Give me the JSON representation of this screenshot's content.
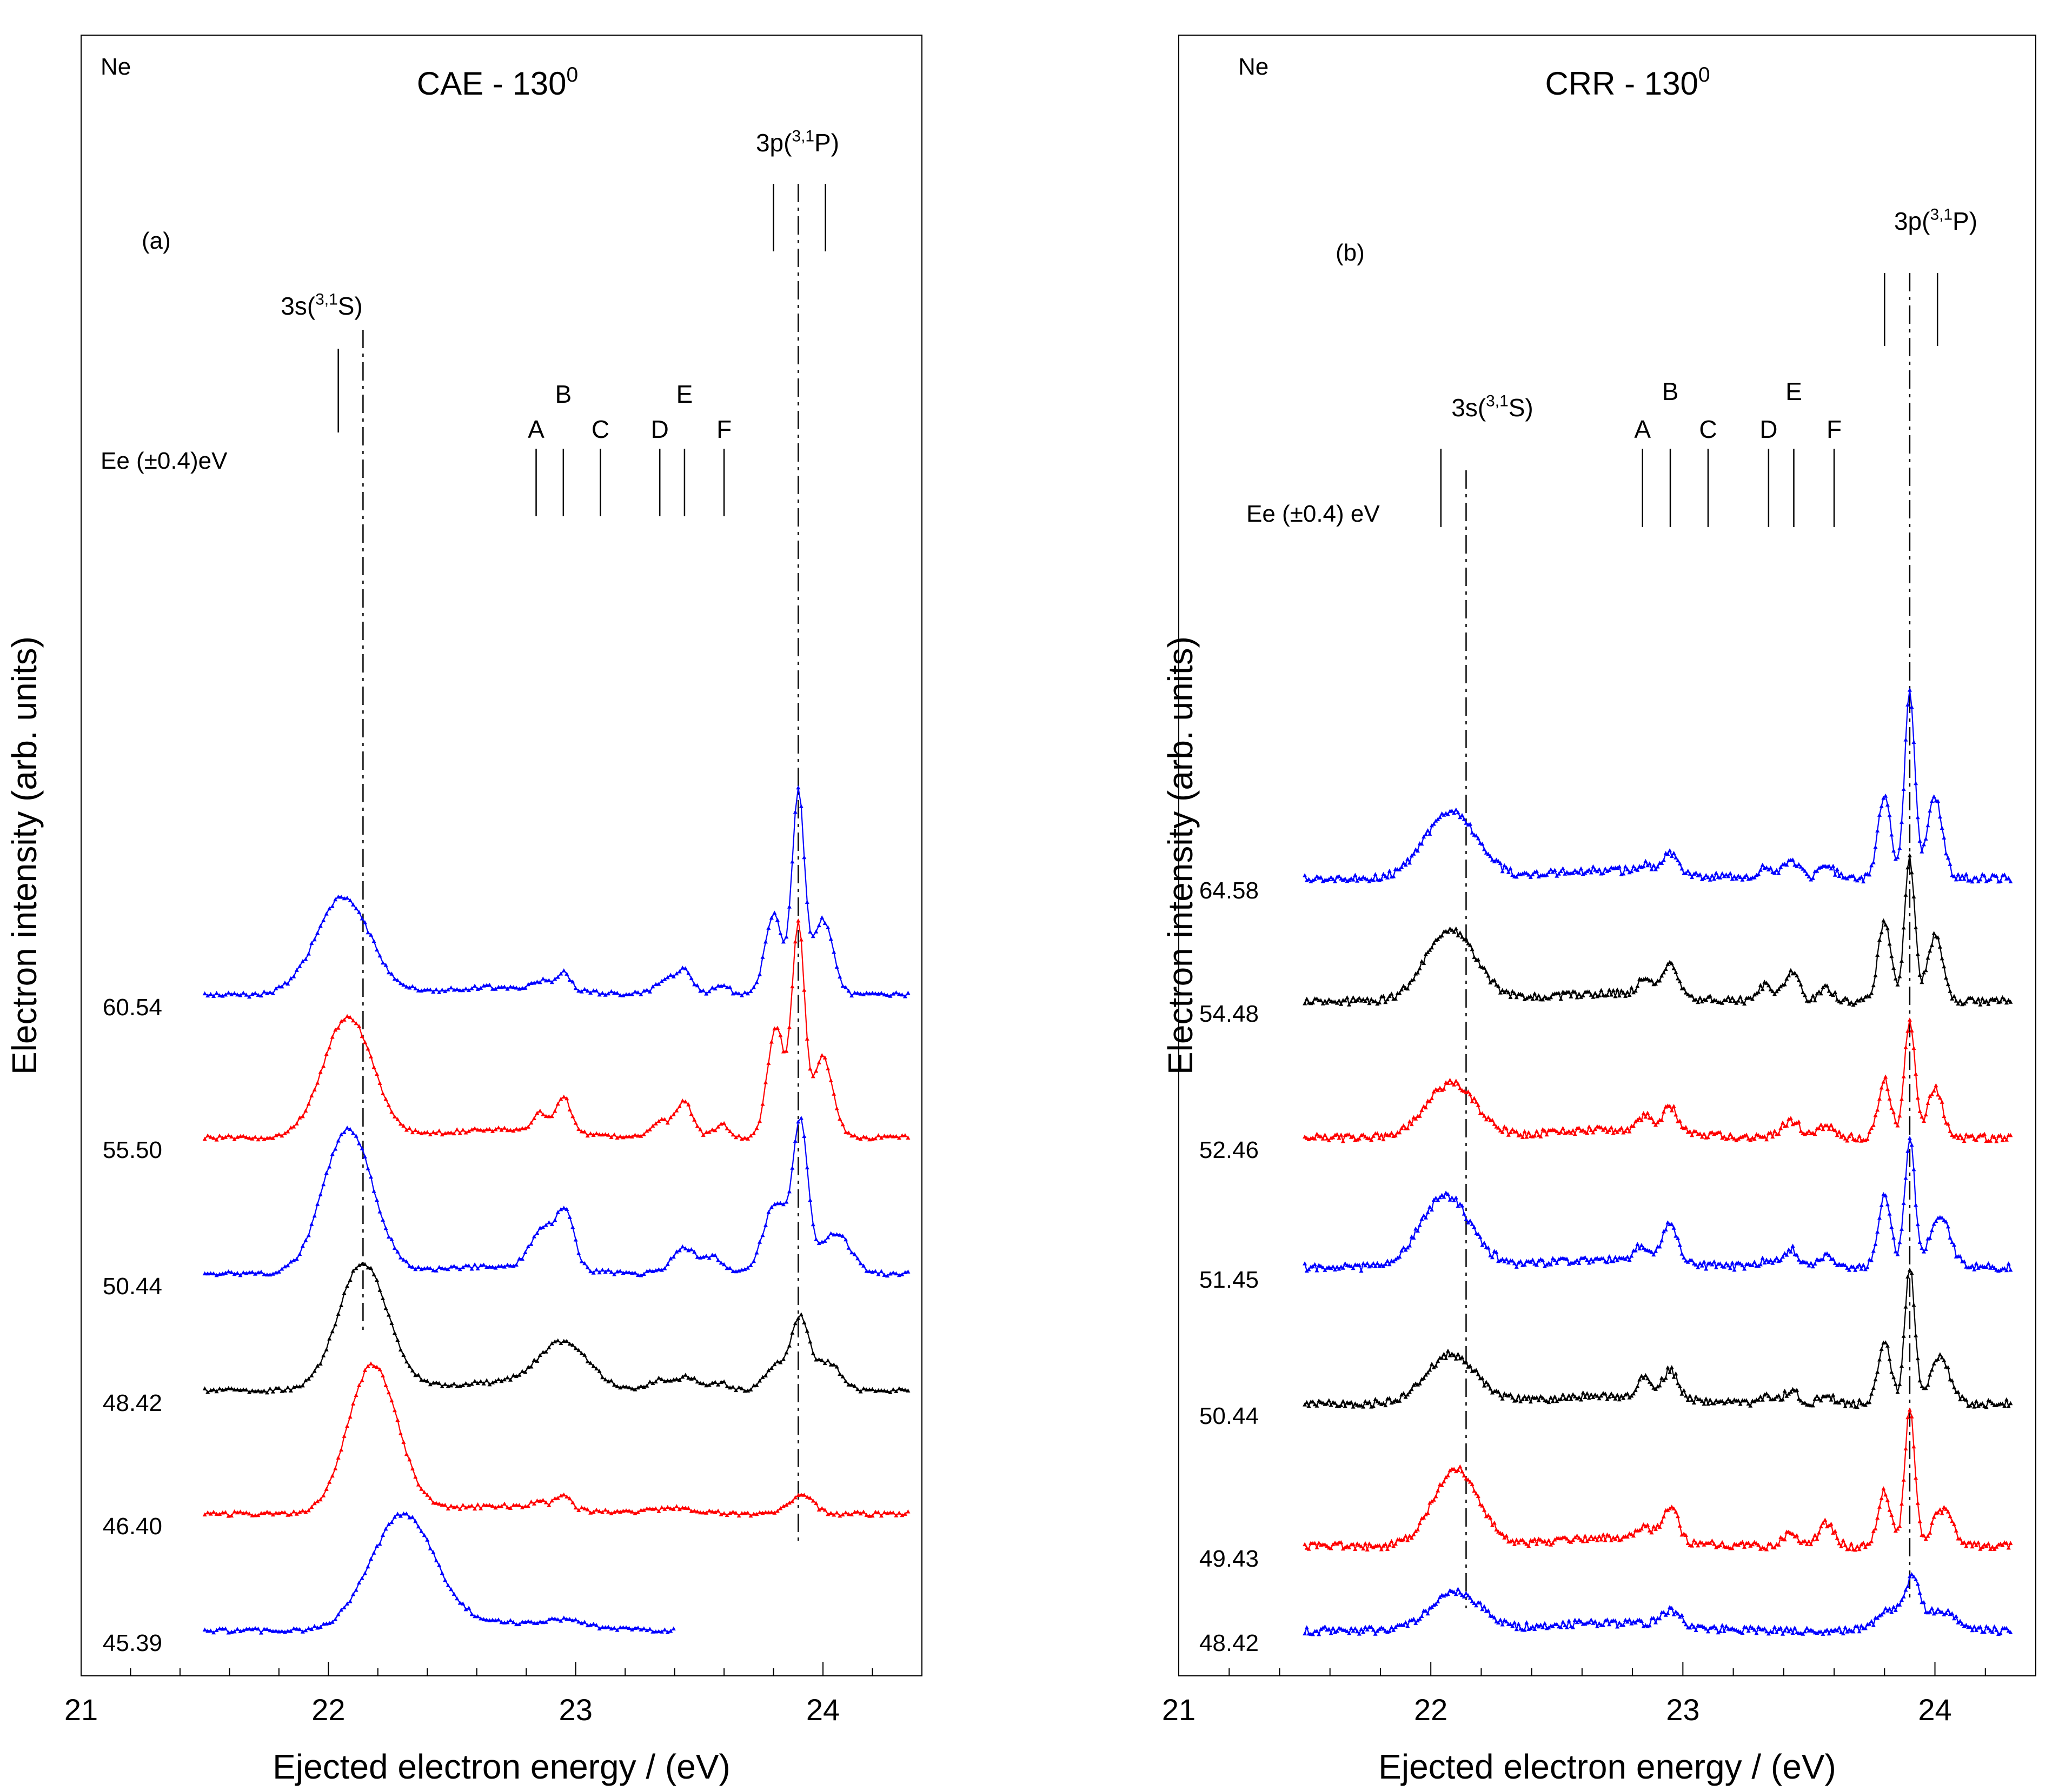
{
  "chart_data": [
    {
      "panel_label": "(a)",
      "element_label": "Ne",
      "title": "CAE - 130",
      "title_superscript": "0",
      "xlabel": "Ejected electron energy / (eV)",
      "ylabel": "Electron intensity (arb. units)",
      "x_tick_labels": [
        "21",
        "22",
        "23",
        "24"
      ],
      "xlim": [
        21.0,
        24.4
      ],
      "energy_header": "Ee (±0.4)eV",
      "series": [
        {
          "name": "60.54",
          "color": "#0000ff",
          "offset": 5.0,
          "x_end": 24.35,
          "peaks": [
            [
              22.06,
              0.75,
              0.11
            ],
            [
              22.86,
              0.06,
              0.03
            ],
            [
              22.95,
              0.14,
              0.03
            ],
            [
              23.36,
              0.1,
              0.04
            ],
            [
              23.44,
              0.18,
              0.035
            ],
            [
              23.59,
              0.08,
              0.03
            ],
            [
              23.8,
              0.62,
              0.035
            ],
            [
              23.9,
              1.55,
              0.025
            ],
            [
              24.0,
              0.58,
              0.04
            ]
          ]
        },
        {
          "name": "55.50",
          "color": "#ff0000",
          "offset": 3.9,
          "x_end": 24.35,
          "peaks": [
            [
              22.08,
              0.93,
              0.1
            ],
            [
              22.86,
              0.14,
              0.03
            ],
            [
              22.95,
              0.28,
              0.03
            ],
            [
              23.34,
              0.12,
              0.04
            ],
            [
              23.44,
              0.27,
              0.035
            ],
            [
              23.59,
              0.1,
              0.03
            ],
            [
              23.81,
              0.85,
              0.035
            ],
            [
              23.9,
              1.62,
              0.025
            ],
            [
              24.0,
              0.62,
              0.04
            ]
          ]
        },
        {
          "name": "50.44",
          "color": "#0000ff",
          "offset": 2.85,
          "x_end": 24.35,
          "peaks": [
            [
              22.08,
              1.12,
              0.1
            ],
            [
              22.87,
              0.3,
              0.05
            ],
            [
              22.96,
              0.42,
              0.035
            ],
            [
              23.44,
              0.2,
              0.05
            ],
            [
              23.56,
              0.12,
              0.04
            ],
            [
              23.81,
              0.55,
              0.05
            ],
            [
              23.91,
              1.1,
              0.03
            ],
            [
              24.05,
              0.32,
              0.06
            ]
          ]
        },
        {
          "name": "48.42",
          "color": "#000000",
          "offset": 1.95,
          "x_end": 24.35,
          "peaks": [
            [
              22.14,
              0.98,
              0.1
            ],
            [
              22.95,
              0.34,
              0.1
            ],
            [
              23.34,
              0.08,
              0.04
            ],
            [
              23.45,
              0.1,
              0.04
            ],
            [
              23.58,
              0.06,
              0.04
            ],
            [
              23.82,
              0.2,
              0.05
            ],
            [
              23.91,
              0.52,
              0.035
            ],
            [
              24.02,
              0.22,
              0.05
            ]
          ]
        },
        {
          "name": "46.40",
          "color": "#ff0000",
          "offset": 1.0,
          "x_end": 24.35,
          "peaks": [
            [
              22.18,
              1.15,
              0.1
            ],
            [
              22.85,
              0.05,
              0.03
            ],
            [
              22.95,
              0.12,
              0.03
            ],
            [
              23.4,
              0.04,
              0.1
            ],
            [
              23.91,
              0.14,
              0.05
            ]
          ]
        },
        {
          "name": "45.39",
          "color": "#0000ff",
          "offset": 0.1,
          "x_end": 23.4,
          "peaks": [
            [
              22.3,
              0.88,
              0.13
            ],
            [
              22.95,
              0.05,
              0.08
            ]
          ]
        }
      ],
      "markers": {
        "s_group_label": "3s(",
        "s_group_super": "3,1",
        "s_group_suffix": "S)",
        "p_group_label": "3p(",
        "p_group_super": "3,1",
        "p_group_suffix": "P)",
        "s_solid": [
          22.04
        ],
        "s_dashdot": 22.14,
        "p_solid": [
          23.8,
          24.01
        ],
        "p_dashdot": 23.9,
        "letters": [
          {
            "label": "A",
            "x": 22.84
          },
          {
            "label": "B",
            "x": 22.95
          },
          {
            "label": "C",
            "x": 23.1
          },
          {
            "label": "D",
            "x": 23.34
          },
          {
            "label": "E",
            "x": 23.44
          },
          {
            "label": "F",
            "x": 23.6
          }
        ]
      }
    },
    {
      "panel_label": "(b)",
      "element_label": "Ne",
      "title": "CRR - 130",
      "title_superscript": "0",
      "xlabel": "Ejected electron energy / (eV)",
      "ylabel": "Electron intensity (arb. units)",
      "x_tick_labels": [
        "21",
        "22",
        "23",
        "24"
      ],
      "xlim": [
        21.0,
        24.4
      ],
      "energy_header": "Ee (±0.4) eV",
      "series": [
        {
          "name": "64.58",
          "color": "#0000ff",
          "offset": 5.9,
          "x_end": 24.3,
          "peaks": [
            [
              22.08,
              0.52,
              0.1
            ],
            [
              22.85,
              0.06,
              0.03
            ],
            [
              22.95,
              0.15,
              0.03
            ],
            [
              23.33,
              0.08,
              0.03
            ],
            [
              23.43,
              0.13,
              0.03
            ],
            [
              23.57,
              0.1,
              0.03
            ],
            [
              23.8,
              0.65,
              0.025
            ],
            [
              23.9,
              1.45,
              0.02
            ],
            [
              24.0,
              0.62,
              0.03
            ]
          ]
        },
        {
          "name": "54.48",
          "color": "#000000",
          "offset": 4.95,
          "x_end": 24.3,
          "peaks": [
            [
              22.08,
              0.55,
              0.1
            ],
            [
              22.85,
              0.12,
              0.03
            ],
            [
              22.95,
              0.25,
              0.03
            ],
            [
              23.33,
              0.12,
              0.03
            ],
            [
              23.43,
              0.22,
              0.03
            ],
            [
              23.57,
              0.1,
              0.03
            ],
            [
              23.8,
              0.62,
              0.025
            ],
            [
              23.9,
              1.1,
              0.02
            ],
            [
              24.0,
              0.5,
              0.03
            ]
          ]
        },
        {
          "name": "52.46",
          "color": "#ff0000",
          "offset": 3.9,
          "x_end": 24.3,
          "peaks": [
            [
              22.08,
              0.42,
              0.1
            ],
            [
              22.85,
              0.12,
              0.03
            ],
            [
              22.95,
              0.2,
              0.03
            ],
            [
              23.43,
              0.12,
              0.04
            ],
            [
              23.57,
              0.1,
              0.03
            ],
            [
              23.8,
              0.45,
              0.025
            ],
            [
              23.9,
              0.92,
              0.02
            ],
            [
              24.0,
              0.38,
              0.03
            ]
          ]
        },
        {
          "name": "51.45",
          "color": "#0000ff",
          "offset": 2.9,
          "x_end": 24.3,
          "peaks": [
            [
              22.06,
              0.55,
              0.1
            ],
            [
              22.84,
              0.12,
              0.03
            ],
            [
              22.95,
              0.3,
              0.03
            ],
            [
              23.33,
              0.06,
              0.03
            ],
            [
              23.43,
              0.14,
              0.03
            ],
            [
              23.57,
              0.08,
              0.03
            ],
            [
              23.8,
              0.55,
              0.025
            ],
            [
              23.9,
              0.98,
              0.02
            ],
            [
              24.02,
              0.4,
              0.04
            ]
          ]
        },
        {
          "name": "50.44",
          "color": "#000000",
          "offset": 1.85,
          "x_end": 24.3,
          "peaks": [
            [
              22.08,
              0.38,
              0.1
            ],
            [
              22.85,
              0.15,
              0.03
            ],
            [
              22.95,
              0.22,
              0.03
            ],
            [
              23.33,
              0.06,
              0.03
            ],
            [
              23.43,
              0.1,
              0.03
            ],
            [
              23.57,
              0.06,
              0.03
            ],
            [
              23.8,
              0.48,
              0.025
            ],
            [
              23.9,
              1.05,
              0.02
            ],
            [
              24.02,
              0.35,
              0.04
            ]
          ]
        },
        {
          "name": "49.43",
          "color": "#ff0000",
          "offset": 0.75,
          "x_end": 24.3,
          "peaks": [
            [
              22.1,
              0.6,
              0.09
            ],
            [
              22.85,
              0.1,
              0.03
            ],
            [
              22.95,
              0.28,
              0.03
            ],
            [
              23.43,
              0.1,
              0.03
            ],
            [
              23.57,
              0.18,
              0.03
            ],
            [
              23.8,
              0.42,
              0.025
            ],
            [
              23.9,
              1.05,
              0.02
            ],
            [
              24.03,
              0.28,
              0.04
            ]
          ]
        },
        {
          "name": "48.42",
          "color": "#0000ff",
          "offset": 0.1,
          "x_end": 24.3,
          "peaks": [
            [
              22.1,
              0.3,
              0.1
            ],
            [
              22.95,
              0.12,
              0.04
            ],
            [
              23.82,
              0.15,
              0.05
            ],
            [
              23.91,
              0.35,
              0.03
            ],
            [
              24.02,
              0.15,
              0.06
            ]
          ]
        }
      ],
      "markers": {
        "s_group_label": "3s(",
        "s_group_super": "3,1",
        "s_group_suffix": "S)",
        "p_group_label": "3p(",
        "p_group_super": "3,1",
        "p_group_suffix": "P)",
        "s_solid": [
          22.04
        ],
        "s_dashdot": 22.14,
        "p_solid": [
          23.8,
          24.01
        ],
        "p_dashdot": 23.9,
        "letters": [
          {
            "label": "A",
            "x": 22.84
          },
          {
            "label": "B",
            "x": 22.95
          },
          {
            "label": "C",
            "x": 23.1
          },
          {
            "label": "D",
            "x": 23.34
          },
          {
            "label": "E",
            "x": 23.44
          },
          {
            "label": "F",
            "x": 23.6
          }
        ]
      }
    }
  ]
}
